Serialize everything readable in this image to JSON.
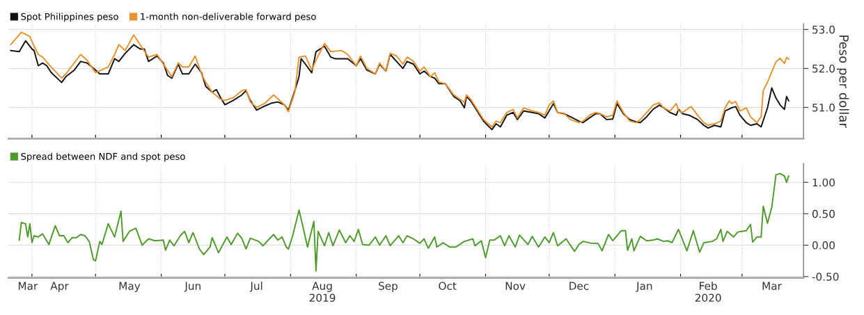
{
  "chart_data": [
    {
      "type": "line",
      "ylabel": "Peso per dollar",
      "legend": "top left",
      "grid": true,
      "tick_labels": "y",
      "xlim": [
        "2019-03-21",
        "2020-03-30"
      ],
      "xticks": [
        {
          "value": "2019-04-01",
          "label": null
        },
        {
          "value": "2019-05-01",
          "label": null
        },
        {
          "value": "2019-06-01",
          "label": null
        },
        {
          "value": "2019-07-01",
          "label": null
        },
        {
          "value": "2019-08-01",
          "label": null
        },
        {
          "value": "2019-09-01",
          "label": null
        },
        {
          "value": "2019-10-01",
          "label": null
        },
        {
          "value": "2019-11-01",
          "label": null
        },
        {
          "value": "2019-12-01",
          "label": null
        },
        {
          "value": "2020-01-01",
          "label": null
        },
        {
          "value": "2020-02-01",
          "label": null
        },
        {
          "value": "2020-03-01",
          "label": null
        }
      ],
      "ylim": [
        50.2,
        53.15
      ],
      "yticks": [
        {
          "value": 51,
          "label": "51.0"
        },
        {
          "value": 52,
          "label": "52.0"
        },
        {
          "value": 53,
          "label": "53.0"
        }
      ],
      "series": [
        {
          "name": "Spot Philippines peso",
          "color": "#111111",
          "x": [
            "2019-03-22",
            "2019-03-26",
            "2019-03-29",
            "2019-04-01",
            "2019-04-02",
            "2019-04-04",
            "2019-04-06",
            "2019-04-08",
            "2019-04-10",
            "2019-04-15",
            "2019-04-17",
            "2019-04-21",
            "2019-04-24",
            "2019-04-27",
            "2019-05-01",
            "2019-05-03",
            "2019-05-07",
            "2019-05-10",
            "2019-05-12",
            "2019-05-15",
            "2019-05-19",
            "2019-05-22",
            "2019-05-24",
            "2019-05-26",
            "2019-05-30",
            "2019-06-02",
            "2019-06-04",
            "2019-06-06",
            "2019-06-09",
            "2019-06-11",
            "2019-06-14",
            "2019-06-17",
            "2019-06-20",
            "2019-06-22",
            "2019-06-25",
            "2019-06-27",
            "2019-06-29",
            "2019-07-01",
            "2019-07-05",
            "2019-07-09",
            "2019-07-11",
            "2019-07-13",
            "2019-07-16",
            "2019-07-20",
            "2019-07-23",
            "2019-07-26",
            "2019-07-29",
            "2019-07-31",
            "2019-08-03",
            "2019-08-05",
            "2019-08-06",
            "2019-08-08",
            "2019-08-11",
            "2019-08-13",
            "2019-08-17",
            "2019-08-20",
            "2019-08-22",
            "2019-08-28",
            "2019-09-01",
            "2019-09-03",
            "2019-09-06",
            "2019-09-10",
            "2019-09-12",
            "2019-09-15",
            "2019-09-17",
            "2019-09-20",
            "2019-09-23",
            "2019-09-25",
            "2019-09-28",
            "2019-10-01",
            "2019-10-03",
            "2019-10-06",
            "2019-10-08",
            "2019-10-10",
            "2019-10-13",
            "2019-10-17",
            "2019-10-20",
            "2019-10-22",
            "2019-10-23",
            "2019-10-25",
            "2019-10-28",
            "2019-10-31",
            "2019-11-04",
            "2019-11-06",
            "2019-11-08",
            "2019-11-11",
            "2019-11-14",
            "2019-11-16",
            "2019-11-19",
            "2019-11-23",
            "2019-11-26",
            "2019-11-29",
            "2019-12-01",
            "2019-12-03",
            "2019-12-05",
            "2019-12-08",
            "2019-12-11",
            "2019-12-15",
            "2019-12-17",
            "2019-12-20",
            "2019-12-23",
            "2019-12-25",
            "2019-12-28",
            "2019-12-31",
            "2020-01-02",
            "2020-01-05",
            "2020-01-08",
            "2020-01-11",
            "2020-01-13",
            "2020-01-16",
            "2020-01-19",
            "2020-01-22",
            "2020-01-24",
            "2020-01-27",
            "2020-01-30",
            "2020-01-31",
            "2020-02-02",
            "2020-02-05",
            "2020-02-09",
            "2020-02-12",
            "2020-02-14",
            "2020-02-17",
            "2020-02-20",
            "2020-02-22",
            "2020-02-25",
            "2020-02-27",
            "2020-02-29",
            "2020-03-03",
            "2020-03-05",
            "2020-03-08",
            "2020-03-10",
            "2020-03-13",
            "2020-03-15",
            "2020-03-17",
            "2020-03-19",
            "2020-03-21",
            "2020-03-22",
            "2020-03-23"
          ],
          "values": [
            52.46,
            52.43,
            52.71,
            52.5,
            52.46,
            52.07,
            52.14,
            52.07,
            51.9,
            51.64,
            51.79,
            51.96,
            52.18,
            52.14,
            51.96,
            51.86,
            51.86,
            52.25,
            52.18,
            52.39,
            52.61,
            52.5,
            52.5,
            52.18,
            52.32,
            52.14,
            51.82,
            51.75,
            52.11,
            51.86,
            51.86,
            52.11,
            51.89,
            51.54,
            51.39,
            51.46,
            51.25,
            51.07,
            51.18,
            51.32,
            51.43,
            51.18,
            50.93,
            51.04,
            51.11,
            51.14,
            51.07,
            50.93,
            51.43,
            51.79,
            52.25,
            52.11,
            51.89,
            52.43,
            52.57,
            52.29,
            52.25,
            52.25,
            52.07,
            52.25,
            51.96,
            51.86,
            52.11,
            51.93,
            52.36,
            52.18,
            52.0,
            52.18,
            52.11,
            51.86,
            51.93,
            51.79,
            51.75,
            51.61,
            51.61,
            51.28,
            51.17,
            50.99,
            51.28,
            51.17,
            50.91,
            50.65,
            50.43,
            50.58,
            50.5,
            50.8,
            50.87,
            50.69,
            50.91,
            50.87,
            50.84,
            50.73,
            50.91,
            51.1,
            50.87,
            50.84,
            50.76,
            50.65,
            50.61,
            50.73,
            50.84,
            50.84,
            50.69,
            50.7,
            51.1,
            50.84,
            50.69,
            50.63,
            50.61,
            50.76,
            50.95,
            51.06,
            50.99,
            50.87,
            50.8,
            50.95,
            50.84,
            50.8,
            50.69,
            50.54,
            50.47,
            50.54,
            50.5,
            50.91,
            50.99,
            51.02,
            50.8,
            50.61,
            50.54,
            50.58,
            50.5,
            50.99,
            51.5,
            51.24,
            51.06,
            50.95,
            51.28,
            51.17
          ]
        },
        {
          "name": "1-month non-deliverable forward peso",
          "color": "#e8912e",
          "x": [
            "2019-03-22",
            "2019-03-27",
            "2019-03-31",
            "2019-04-02",
            "2019-04-04",
            "2019-04-06",
            "2019-04-10",
            "2019-04-15",
            "2019-04-17",
            "2019-04-24",
            "2019-04-27",
            "2019-05-01",
            "2019-05-07",
            "2019-05-10",
            "2019-05-12",
            "2019-05-15",
            "2019-05-19",
            "2019-05-22",
            "2019-05-26",
            "2019-05-30",
            "2019-06-02",
            "2019-06-06",
            "2019-06-09",
            "2019-06-11",
            "2019-06-14",
            "2019-06-17",
            "2019-06-20",
            "2019-06-22",
            "2019-06-25",
            "2019-06-29",
            "2019-07-01",
            "2019-07-05",
            "2019-07-09",
            "2019-07-11",
            "2019-07-13",
            "2019-07-16",
            "2019-07-20",
            "2019-07-24",
            "2019-07-29",
            "2019-07-31",
            "2019-08-03",
            "2019-08-05",
            "2019-08-08",
            "2019-08-11",
            "2019-08-13",
            "2019-08-17",
            "2019-08-20",
            "2019-08-25",
            "2019-08-28",
            "2019-09-01",
            "2019-09-03",
            "2019-09-06",
            "2019-09-10",
            "2019-09-12",
            "2019-09-15",
            "2019-09-17",
            "2019-09-20",
            "2019-09-23",
            "2019-09-25",
            "2019-09-28",
            "2019-10-01",
            "2019-10-03",
            "2019-10-06",
            "2019-10-08",
            "2019-10-10",
            "2019-10-13",
            "2019-10-17",
            "2019-10-20",
            "2019-10-22",
            "2019-10-23",
            "2019-10-25",
            "2019-10-28",
            "2019-10-31",
            "2019-11-04",
            "2019-11-06",
            "2019-11-08",
            "2019-11-11",
            "2019-11-14",
            "2019-11-16",
            "2019-11-19",
            "2019-11-23",
            "2019-11-26",
            "2019-11-29",
            "2019-12-01",
            "2019-12-03",
            "2019-12-05",
            "2019-12-08",
            "2019-12-11",
            "2019-12-15",
            "2019-12-17",
            "2019-12-20",
            "2019-12-23",
            "2019-12-25",
            "2019-12-28",
            "2019-12-31",
            "2020-01-02",
            "2020-01-05",
            "2020-01-08",
            "2020-01-11",
            "2020-01-13",
            "2020-01-16",
            "2020-01-19",
            "2020-01-22",
            "2020-01-24",
            "2020-01-27",
            "2020-01-30",
            "2020-01-31",
            "2020-02-02",
            "2020-02-05",
            "2020-02-06",
            "2020-02-09",
            "2020-02-12",
            "2020-02-14",
            "2020-02-17",
            "2020-02-20",
            "2020-02-22",
            "2020-02-24",
            "2020-02-25",
            "2020-02-27",
            "2020-02-29",
            "2020-03-03",
            "2020-03-05",
            "2020-03-08",
            "2020-03-10",
            "2020-03-11",
            "2020-03-13",
            "2020-03-15",
            "2020-03-17",
            "2020-03-19",
            "2020-03-21",
            "2020-03-22",
            "2020-03-23"
          ],
          "values": [
            52.61,
            52.93,
            52.82,
            52.57,
            52.36,
            52.29,
            52.04,
            51.75,
            51.86,
            52.36,
            52.21,
            51.89,
            52.04,
            52.36,
            52.61,
            52.46,
            52.86,
            52.61,
            52.29,
            52.36,
            52.11,
            51.79,
            52.14,
            52.04,
            52.04,
            52.32,
            51.86,
            51.64,
            51.39,
            51.21,
            51.18,
            51.25,
            51.43,
            51.46,
            51.14,
            51.0,
            51.11,
            51.32,
            51.07,
            50.89,
            51.39,
            52.29,
            52.32,
            51.96,
            52.21,
            52.64,
            52.43,
            52.46,
            52.36,
            52.07,
            52.32,
            52.0,
            51.86,
            52.14,
            51.93,
            52.39,
            52.32,
            52.11,
            52.29,
            52.18,
            51.93,
            52.04,
            51.79,
            51.89,
            51.65,
            51.61,
            51.32,
            51.21,
            51.13,
            51.32,
            51.21,
            50.95,
            50.69,
            50.5,
            50.65,
            50.61,
            50.87,
            50.95,
            50.73,
            50.99,
            50.91,
            50.87,
            50.8,
            51.06,
            51.17,
            50.87,
            50.85,
            50.69,
            50.61,
            50.65,
            50.8,
            50.87,
            50.84,
            50.76,
            50.8,
            51.17,
            50.87,
            50.65,
            50.61,
            50.69,
            50.87,
            51.06,
            51.12,
            50.99,
            50.91,
            51.1,
            50.91,
            50.87,
            50.99,
            51.02,
            50.8,
            50.61,
            50.54,
            50.58,
            50.65,
            50.99,
            51.17,
            51.1,
            51.15,
            50.91,
            50.99,
            50.76,
            50.61,
            50.76,
            51.43,
            51.65,
            51.91,
            52.17,
            52.26,
            52.13,
            52.28,
            52.24
          ]
        }
      ]
    },
    {
      "type": "line",
      "legend": "top left",
      "grid": true,
      "xlim": [
        "2019-03-21",
        "2020-03-30"
      ],
      "xticks": [
        {
          "value": "2019-04-01",
          "label": null
        },
        {
          "value": "2019-05-01",
          "label": null
        },
        {
          "value": "2019-06-01",
          "label": null
        },
        {
          "value": "2019-07-01",
          "label": null
        },
        {
          "value": "2019-08-01",
          "label": null
        },
        {
          "value": "2019-09-01",
          "label": null
        },
        {
          "value": "2019-10-01",
          "label": null
        },
        {
          "value": "2019-11-01",
          "label": null
        },
        {
          "value": "2019-12-01",
          "label": null
        },
        {
          "value": "2020-01-01",
          "label": null
        },
        {
          "value": "2020-02-01",
          "label": null
        },
        {
          "value": "2020-03-01",
          "label": null
        },
        {
          "value": "2019-03-30",
          "label": "Mar"
        },
        {
          "value": "2019-04-14",
          "label": "Apr"
        },
        {
          "value": "2019-05-17",
          "label": "May"
        },
        {
          "value": "2019-06-16",
          "label": "Jun"
        },
        {
          "value": "2019-07-16",
          "label": "Jul"
        },
        {
          "value": "2019-08-16",
          "label": "Aug\n2019"
        },
        {
          "value": "2019-09-16",
          "label": "Sep"
        },
        {
          "value": "2019-10-14",
          "label": "Oct"
        },
        {
          "value": "2019-11-15",
          "label": "Nov"
        },
        {
          "value": "2019-12-15",
          "label": "Dec"
        },
        {
          "value": "2020-01-15",
          "label": "Jan"
        },
        {
          "value": "2020-02-14",
          "label": "Feb\n2020"
        },
        {
          "value": "2020-03-15",
          "label": "Mar"
        }
      ],
      "ylim": [
        -0.52,
        1.3
      ],
      "yticks": [
        {
          "value": -0.5,
          "label": "-0.50"
        },
        {
          "value": 0,
          "label": "0.00"
        },
        {
          "value": 0.5,
          "label": "0.50"
        },
        {
          "value": 1,
          "label": "1.00"
        }
      ],
      "series": [
        {
          "name": "Spread between NDF and spot peso",
          "color": "#4c9a2a",
          "x": [
            "2019-03-26",
            "2019-03-27",
            "2019-03-29",
            "2019-03-30",
            "2019-03-31",
            "2019-04-01",
            "2019-04-02",
            "2019-04-04",
            "2019-04-06",
            "2019-04-09",
            "2019-04-12",
            "2019-04-14",
            "2019-04-16",
            "2019-04-18",
            "2019-04-20",
            "2019-04-22",
            "2019-04-24",
            "2019-04-26",
            "2019-04-28",
            "2019-04-30",
            "2019-05-01",
            "2019-05-03",
            "2019-05-04",
            "2019-05-07",
            "2019-05-10",
            "2019-05-13",
            "2019-05-14",
            "2019-05-17",
            "2019-05-20",
            "2019-05-23",
            "2019-05-26",
            "2019-05-29",
            "2019-06-02",
            "2019-06-03",
            "2019-06-05",
            "2019-06-07",
            "2019-06-10",
            "2019-06-12",
            "2019-06-14",
            "2019-06-16",
            "2019-06-19",
            "2019-06-21",
            "2019-06-24",
            "2019-06-25",
            "2019-06-28",
            "2019-07-02",
            "2019-07-04",
            "2019-07-07",
            "2019-07-09",
            "2019-07-11",
            "2019-07-13",
            "2019-07-17",
            "2019-07-19",
            "2019-07-22",
            "2019-07-24",
            "2019-07-26",
            "2019-07-28",
            "2019-07-30",
            "2019-07-31",
            "2019-08-02",
            "2019-08-05",
            "2019-08-07",
            "2019-08-09",
            "2019-08-12",
            "2019-08-13",
            "2019-08-14",
            "2019-08-17",
            "2019-08-19",
            "2019-08-21",
            "2019-08-24",
            "2019-08-27",
            "2019-08-29",
            "2019-08-31",
            "2019-09-02",
            "2019-09-04",
            "2019-09-07",
            "2019-09-10",
            "2019-09-12",
            "2019-09-15",
            "2019-09-17",
            "2019-09-21",
            "2019-09-23",
            "2019-09-25",
            "2019-09-28",
            "2019-10-01",
            "2019-10-03",
            "2019-10-05",
            "2019-10-08",
            "2019-10-09",
            "2019-10-12",
            "2019-10-15",
            "2019-10-18",
            "2019-10-22",
            "2019-10-26",
            "2019-10-27",
            "2019-10-30",
            "2019-11-01",
            "2019-11-03",
            "2019-11-05",
            "2019-11-08",
            "2019-11-10",
            "2019-11-12",
            "2019-11-15",
            "2019-11-17",
            "2019-11-21",
            "2019-11-23",
            "2019-11-26",
            "2019-11-29",
            "2019-12-01",
            "2019-12-03",
            "2019-12-05",
            "2019-12-09",
            "2019-12-13",
            "2019-12-15",
            "2019-12-17",
            "2019-12-21",
            "2019-12-24",
            "2019-12-26",
            "2019-12-29",
            "2019-12-31",
            "2020-01-04",
            "2020-01-06",
            "2020-01-07",
            "2020-01-09",
            "2020-01-10",
            "2020-01-13",
            "2020-01-16",
            "2020-01-19",
            "2020-01-21",
            "2020-01-24",
            "2020-01-26",
            "2020-01-28",
            "2020-01-31",
            "2020-02-04",
            "2020-02-07",
            "2020-02-10",
            "2020-02-12",
            "2020-02-16",
            "2020-02-18",
            "2020-02-20",
            "2020-02-21",
            "2020-02-23",
            "2020-02-26",
            "2020-02-28",
            "2020-03-03",
            "2020-03-05",
            "2020-03-06",
            "2020-03-08",
            "2020-03-10",
            "2020-03-11",
            "2020-03-13",
            "2020-03-15",
            "2020-03-17",
            "2020-03-19",
            "2020-03-21",
            "2020-03-22",
            "2020-03-23"
          ],
          "values": [
            0.08,
            0.36,
            0.34,
            0.13,
            0.34,
            0.04,
            0.15,
            0.13,
            0.18,
            0.01,
            0.31,
            0.15,
            0.15,
            0.04,
            0.12,
            0.12,
            0.17,
            0.15,
            0.06,
            -0.23,
            -0.25,
            0.06,
            0.01,
            0.34,
            0.13,
            0.54,
            0.06,
            0.22,
            0.27,
            0.0,
            0.1,
            0.07,
            0.08,
            -0.08,
            0.08,
            -0.01,
            0.15,
            0.22,
            0.04,
            0.2,
            -0.06,
            -0.15,
            -0.03,
            0.12,
            -0.12,
            0.13,
            0.01,
            0.19,
            0.11,
            -0.06,
            0.11,
            0.06,
            -0.01,
            0.1,
            0.17,
            0.08,
            0.13,
            -0.03,
            -0.06,
            0.15,
            0.56,
            0.27,
            -0.03,
            0.38,
            -0.41,
            0.22,
            -0.01,
            0.2,
            -0.01,
            0.24,
            0.04,
            0.15,
            0.06,
            0.25,
            0.01,
            0.0,
            0.13,
            0.0,
            0.15,
            -0.01,
            0.15,
            0.04,
            0.15,
            0.1,
            0.03,
            0.1,
            -0.05,
            0.13,
            -0.03,
            0.04,
            -0.03,
            -0.03,
            0.06,
            0.1,
            -0.01,
            0.07,
            -0.2,
            0.08,
            0.08,
            0.15,
            -0.01,
            0.15,
            -0.03,
            0.16,
            0.01,
            0.14,
            -0.03,
            0.13,
            0.04,
            0.2,
            -0.01,
            0.1,
            -0.1,
            0.01,
            0.06,
            0.03,
            0.03,
            -0.09,
            0.17,
            0.07,
            0.23,
            0.23,
            -0.08,
            0.1,
            -0.09,
            0.14,
            0.07,
            0.08,
            0.1,
            0.06,
            0.07,
            0.04,
            0.25,
            -0.09,
            0.23,
            -0.11,
            0.04,
            0.06,
            0.1,
            0.25,
            0.06,
            0.22,
            0.13,
            0.21,
            0.23,
            0.33,
            0.05,
            0.13,
            0.13,
            0.62,
            0.35,
            0.6,
            1.12,
            1.14,
            1.1,
            1.0,
            1.1
          ]
        }
      ]
    }
  ]
}
